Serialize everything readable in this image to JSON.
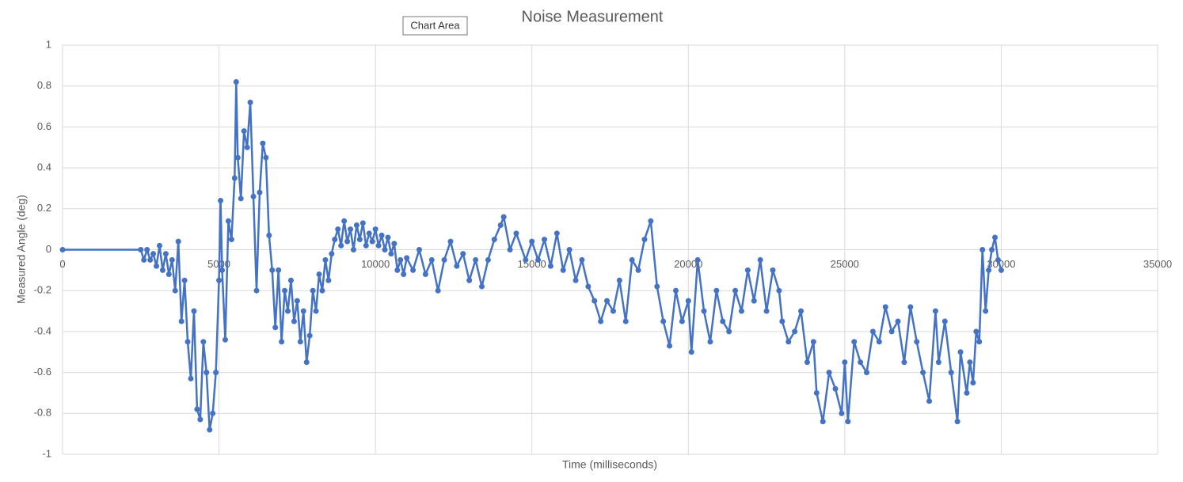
{
  "chart_data": {
    "type": "line",
    "title": "Noise Measurement",
    "tooltip": "Chart Area",
    "x_label": "Time (milliseconds)",
    "y_label": "Measured Angle (deg)",
    "color": "#4472c4",
    "grid": true,
    "markers": true,
    "xlim": [
      0,
      35000
    ],
    "xticks": [
      0,
      5000,
      10000,
      15000,
      20000,
      25000,
      30000,
      35000
    ],
    "ylim": [
      -1,
      1
    ],
    "yticks": [
      -1,
      -0.8,
      -0.6,
      -0.4,
      -0.2,
      0,
      0.2,
      0.4,
      0.6,
      0.8,
      1
    ],
    "x": [
      0,
      2500,
      2600,
      2700,
      2800,
      2900,
      3000,
      3100,
      3200,
      3300,
      3400,
      3500,
      3600,
      3700,
      3800,
      3900,
      4000,
      4100,
      4200,
      4300,
      4400,
      4500,
      4600,
      4700,
      4800,
      4900,
      5000,
      5050,
      5100,
      5200,
      5300,
      5400,
      5500,
      5550,
      5600,
      5700,
      5800,
      5900,
      6000,
      6100,
      6200,
      6300,
      6400,
      6500,
      6600,
      6700,
      6800,
      6900,
      7000,
      7100,
      7200,
      7300,
      7400,
      7500,
      7600,
      7700,
      7800,
      7900,
      8000,
      8100,
      8200,
      8300,
      8400,
      8500,
      8600,
      8700,
      8800,
      8900,
      9000,
      9100,
      9200,
      9300,
      9400,
      9500,
      9600,
      9700,
      9800,
      9900,
      10000,
      10100,
      10200,
      10300,
      10400,
      10500,
      10600,
      10700,
      10800,
      10900,
      11000,
      11200,
      11400,
      11600,
      11800,
      12000,
      12200,
      12400,
      12600,
      12800,
      13000,
      13200,
      13400,
      13600,
      13800,
      14000,
      14100,
      14300,
      14500,
      14800,
      15000,
      15200,
      15400,
      15600,
      15800,
      16000,
      16200,
      16400,
      16600,
      16800,
      17000,
      17200,
      17400,
      17600,
      17800,
      18000,
      18200,
      18400,
      18600,
      18800,
      19000,
      19200,
      19400,
      19600,
      19800,
      20000,
      20100,
      20300,
      20500,
      20700,
      20900,
      21100,
      21300,
      21500,
      21700,
      21900,
      22100,
      22300,
      22500,
      22700,
      22900,
      23000,
      23200,
      23400,
      23600,
      23800,
      24000,
      24100,
      24300,
      24500,
      24700,
      24900,
      25000,
      25100,
      25300,
      25500,
      25700,
      25900,
      26100,
      26300,
      26500,
      26700,
      26900,
      27100,
      27300,
      27500,
      27700,
      27900,
      28000,
      28200,
      28400,
      28600,
      28700,
      28900,
      29000,
      29100,
      29200,
      29300,
      29400,
      29500,
      29600,
      29700,
      29800,
      29900,
      30000
    ],
    "values": [
      0,
      0,
      -0.05,
      0,
      -0.05,
      -0.02,
      -0.08,
      0.02,
      -0.1,
      -0.02,
      -0.12,
      -0.05,
      -0.2,
      0.04,
      -0.35,
      -0.15,
      -0.45,
      -0.63,
      -0.3,
      -0.78,
      -0.83,
      -0.45,
      -0.6,
      -0.88,
      -0.8,
      -0.6,
      -0.15,
      0.24,
      -0.1,
      -0.44,
      0.14,
      0.05,
      0.35,
      0.82,
      0.45,
      0.25,
      0.58,
      0.5,
      0.72,
      0.26,
      -0.2,
      0.28,
      0.52,
      0.45,
      0.07,
      -0.1,
      -0.38,
      -0.1,
      -0.45,
      -0.2,
      -0.3,
      -0.15,
      -0.35,
      -0.25,
      -0.45,
      -0.3,
      -0.55,
      -0.42,
      -0.2,
      -0.3,
      -0.12,
      -0.2,
      -0.05,
      -0.15,
      -0.02,
      0.05,
      0.1,
      0.02,
      0.14,
      0.04,
      0.1,
      0,
      0.12,
      0.05,
      0.13,
      0.02,
      0.08,
      0.04,
      0.1,
      0.02,
      0.07,
      0,
      0.06,
      -0.02,
      0.03,
      -0.1,
      -0.05,
      -0.12,
      -0.04,
      -0.1,
      0,
      -0.12,
      -0.05,
      -0.2,
      -0.05,
      0.04,
      -0.08,
      -0.02,
      -0.15,
      -0.05,
      -0.18,
      -0.05,
      0.05,
      0.12,
      0.16,
      0,
      0.08,
      -0.05,
      0.04,
      -0.05,
      0.05,
      -0.08,
      0.08,
      -0.1,
      0,
      -0.15,
      -0.05,
      -0.18,
      -0.25,
      -0.35,
      -0.25,
      -0.3,
      -0.15,
      -0.35,
      -0.05,
      -0.1,
      0.05,
      0.14,
      -0.18,
      -0.35,
      -0.47,
      -0.2,
      -0.35,
      -0.25,
      -0.5,
      -0.05,
      -0.3,
      -0.45,
      -0.2,
      -0.35,
      -0.4,
      -0.2,
      -0.3,
      -0.1,
      -0.25,
      -0.05,
      -0.3,
      -0.1,
      -0.2,
      -0.35,
      -0.45,
      -0.4,
      -0.3,
      -0.55,
      -0.45,
      -0.7,
      -0.84,
      -0.6,
      -0.68,
      -0.8,
      -0.55,
      -0.84,
      -0.45,
      -0.55,
      -0.6,
      -0.4,
      -0.45,
      -0.28,
      -0.4,
      -0.35,
      -0.55,
      -0.28,
      -0.45,
      -0.6,
      -0.74,
      -0.3,
      -0.55,
      -0.35,
      -0.6,
      -0.84,
      -0.5,
      -0.7,
      -0.55,
      -0.65,
      -0.4,
      -0.45,
      0,
      -0.3,
      -0.1,
      0,
      0.06,
      -0.05,
      -0.1
    ]
  }
}
